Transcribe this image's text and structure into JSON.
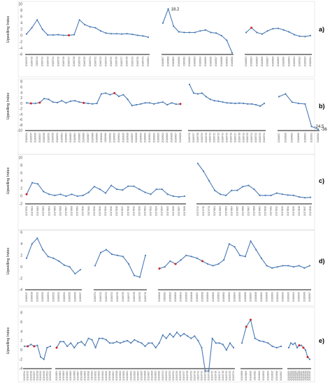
{
  "chart_data": [
    {
      "type": "line",
      "panel": "a)",
      "ylabel": "Upwelling Index",
      "y_ticks": [
        -6,
        -4,
        -2,
        0,
        2,
        4,
        6,
        8,
        10
      ],
      "ylim": [
        -6,
        10
      ],
      "grid": false,
      "annotations": [
        {
          "segment": 1,
          "index": 1,
          "text": "18.2"
        }
      ],
      "segments": [
        {
          "labels": [
            "20160709",
            "20160710",
            "20160711",
            "20160712",
            "20160713",
            "20160714",
            "20160715",
            "20160716",
            "20160717",
            "20160718",
            "20160719",
            "20160720",
            "20160721",
            "20160722",
            "20160723",
            "20160724",
            "20160725",
            "20160726",
            "20160727",
            "20160728",
            "20160729",
            "20160730",
            "20160731",
            "20160801"
          ],
          "values": [
            0.5,
            2.5,
            5,
            2,
            0.2,
            0.2,
            0.3,
            0.1,
            0.1,
            0.3,
            5,
            3.5,
            2.8,
            2.5,
            1.5,
            0.8,
            0.6,
            0.6,
            0.5,
            0.6,
            0.4,
            0.1,
            -0.1,
            -0.5
          ],
          "red_points": [
            8
          ]
        },
        {
          "labels": [
            "20160807",
            "20160808",
            "20160809",
            "20160810",
            "20160811",
            "20160812",
            "20160813",
            "20160814",
            "20160815",
            "20160816",
            "20160817",
            "20160818",
            "20160819",
            "20160820"
          ],
          "values": [
            4,
            8.5,
            3,
            1.2,
            1,
            1,
            1,
            1.5,
            1.8,
            1,
            0.8,
            0,
            -1.5,
            -5.5
          ],
          "red_points": []
        },
        {
          "labels": [
            "20160823",
            "20160824",
            "20160825",
            "20160826",
            "20160827",
            "20160828",
            "20160829",
            "20160830",
            "20160831",
            "20160901",
            "20160902",
            "20160903",
            "20160904"
          ],
          "values": [
            1,
            2.5,
            1,
            0.5,
            1.5,
            2.2,
            2.3,
            1.8,
            1.2,
            0.3,
            -0.2,
            -0.3,
            0
          ],
          "red_points": [
            1
          ]
        }
      ]
    },
    {
      "type": "line",
      "panel": "b)",
      "ylabel": "Upwelling Index",
      "y_ticks": [
        -10,
        -8,
        -6,
        -4,
        -2,
        0,
        2,
        4,
        6,
        8
      ],
      "ylim": [
        -10,
        8
      ],
      "grid": false,
      "annotations": [
        {
          "segment": 2,
          "index": 5,
          "text": "-24.5"
        },
        {
          "segment": 2,
          "index": 6,
          "text": "-36"
        }
      ],
      "segments": [
        {
          "labels": [
            "20160524",
            "20160525",
            "20160526",
            "20160527",
            "20160528",
            "20160529",
            "20160530",
            "20160531",
            "20160601",
            "20160602",
            "20160603",
            "20160604",
            "20160605",
            "20160606",
            "20160607",
            "20160608",
            "20160609",
            "20160610",
            "20160611",
            "20160612",
            "20160613",
            "20160614",
            "20160615",
            "20160616",
            "20160617",
            "20160618",
            "20160619",
            "20160620",
            "20160621",
            "20160622",
            "20160623",
            "20160624",
            "20160625",
            "20160626",
            "20160627",
            "20160628"
          ],
          "values": [
            0.2,
            0,
            0,
            0.3,
            1.8,
            1.5,
            0.5,
            0.3,
            1,
            0.2,
            0.8,
            1,
            0.5,
            0.2,
            0,
            -0.2,
            0,
            3.5,
            3.8,
            3.2,
            3.8,
            2.6,
            3.2,
            1.5,
            -0.8,
            -0.5,
            -0.2,
            0.2,
            0.2,
            -0.2,
            0.2,
            0.5,
            -0.5,
            0.2,
            -0.3,
            -0.2
          ],
          "red_points": [
            1,
            3,
            13,
            20,
            35
          ]
        },
        {
          "labels": [
            "20160706",
            "20160707",
            "20160708",
            "20160709",
            "20160710",
            "20160711",
            "20160712",
            "20160713",
            "20160714",
            "20160715",
            "20160716",
            "20160717",
            "20160718",
            "20160719",
            "20160720",
            "20160721",
            "20160722",
            "20160723",
            "20160724"
          ],
          "values": [
            7,
            3.8,
            3.5,
            3.8,
            2.5,
            1.5,
            1,
            0.8,
            0.5,
            0.2,
            0.1,
            0,
            0.1,
            0,
            -0.2,
            -0.2,
            -0.5,
            -1,
            0
          ],
          "red_points": []
        },
        {
          "labels": [
            "20160827",
            "20160828",
            "20160829",
            "20160830",
            "20160831",
            "20160901",
            "20160902"
          ],
          "values": [
            2.5,
            3.5,
            0.5,
            0,
            -0.2,
            -8.5,
            -9.5
          ],
          "red_points": []
        }
      ]
    },
    {
      "type": "line",
      "panel": "c)",
      "ylabel": "Upwelling Index",
      "y_ticks": [
        -2,
        0,
        2,
        4,
        6,
        8,
        10
      ],
      "ylim": [
        -2,
        10
      ],
      "grid": false,
      "annotations": [],
      "segments": [
        {
          "labels": [
            "20170531",
            "20170601",
            "20170602",
            "20170603",
            "20170604",
            "20170605",
            "20170606",
            "20170607",
            "20170608",
            "20170609",
            "20170610",
            "20170611",
            "20170612",
            "20170613",
            "20170614",
            "20170615",
            "20170616",
            "20170617",
            "20170618",
            "20170619",
            "20170620",
            "20170621",
            "20170622",
            "20170623",
            "20170624",
            "20170625",
            "20170626",
            "20170627",
            "20170628"
          ],
          "values": [
            0.5,
            3.5,
            3.2,
            1.2,
            0.5,
            0.2,
            0.5,
            0,
            0.5,
            0,
            0.2,
            1,
            2.5,
            1.8,
            0.8,
            2.8,
            1.8,
            1.6,
            2.6,
            2.6,
            1.8,
            1,
            0.5,
            1.8,
            1.8,
            0.5,
            0,
            -0.2,
            0
          ],
          "red_points": [
            0
          ]
        },
        {
          "labels": [
            "20170729",
            "20170730",
            "20170731",
            "20170801",
            "20170802",
            "20170803",
            "20170804",
            "20170805",
            "20170806",
            "20170807",
            "20170808",
            "20170809",
            "20170810",
            "20170811",
            "20170812",
            "20170813",
            "20170814",
            "20170815",
            "20170816",
            "20170817",
            "20170818"
          ],
          "values": [
            8.5,
            6.5,
            4,
            1.5,
            0.5,
            0.2,
            1.5,
            1.5,
            2.5,
            2.8,
            1.8,
            0.2,
            0.2,
            0.2,
            0.8,
            0.5,
            0.3,
            0.2,
            -0.2,
            -0.4,
            -0.3
          ],
          "red_points": []
        }
      ]
    },
    {
      "type": "line",
      "panel": "d)",
      "ylabel": "Upwelling Index",
      "y_ticks": [
        -4,
        -2,
        0,
        2,
        4,
        6
      ],
      "ylim": [
        -4,
        6
      ],
      "grid": false,
      "annotations": [],
      "segments": [
        {
          "labels": [
            "20180517",
            "20180518",
            "20180519",
            "20180520",
            "20180521",
            "20180522",
            "20180523",
            "20180524",
            "20180525",
            "20180526",
            "20180527"
          ],
          "values": [
            1.5,
            4,
            5,
            3,
            1.8,
            1.5,
            1,
            0.3,
            0,
            -1.2,
            -0.5
          ],
          "red_points": []
        },
        {
          "labels": [
            "20180701",
            "20180702",
            "20180703",
            "20180704",
            "20180705",
            "20180706",
            "20180707",
            "20180708",
            "20180709",
            "20180710"
          ],
          "values": [
            0.2,
            2.5,
            3,
            2.2,
            2,
            1.8,
            0.5,
            -1.5,
            -1.8,
            2
          ],
          "red_points": []
        },
        {
          "labels": [
            "20180810",
            "20180811",
            "20180812",
            "20180813",
            "20180814",
            "20180815",
            "20180816",
            "20180817",
            "20180818",
            "20180819",
            "20180820",
            "20180821",
            "20180822",
            "20180823",
            "20180824",
            "20180825",
            "20180826",
            "20180827",
            "20180828",
            "20180829",
            "20180830",
            "20180831",
            "20180901",
            "20180902",
            "20180903",
            "20180904",
            "20180905",
            "20180906",
            "20180907"
          ],
          "values": [
            -0.3,
            0,
            1,
            0.5,
            1.2,
            2,
            1.8,
            1.5,
            1,
            0.5,
            0.2,
            0.5,
            1.2,
            4,
            3.5,
            2,
            1.8,
            4.5,
            3,
            1.5,
            0.2,
            -0.2,
            0,
            0.2,
            0.2,
            0,
            0.2,
            -0.2,
            0.2
          ],
          "red_points": [
            0,
            3,
            8
          ]
        }
      ]
    },
    {
      "type": "line",
      "panel": "e)",
      "ylabel": "Upwelling Index",
      "y_ticks": [
        -4,
        -2,
        0,
        2,
        4,
        6,
        8
      ],
      "ylim": [
        -4,
        8
      ],
      "grid": false,
      "annotations": [],
      "segments": [
        {
          "labels": [
            "20190514",
            "20190515",
            "20190516",
            "20190517",
            "20190518",
            "20190519",
            "20190520",
            "20190521",
            "20190522"
          ],
          "values": [
            0.8,
            0.8,
            1.2,
            0.8,
            1,
            -1.5,
            -2,
            0.5,
            0.8
          ],
          "red_points": [
            1,
            3
          ]
        },
        {
          "labels": [
            "20190601",
            "20190602",
            "20190603",
            "20190604",
            "20190605",
            "20190606",
            "20190607",
            "20190608",
            "20190609",
            "20190610",
            "20190611",
            "20190612",
            "20190613",
            "20190614",
            "20190615",
            "20190616",
            "20190617",
            "20190618",
            "20190619",
            "20190620",
            "20190621",
            "20190622",
            "20190623",
            "20190624",
            "20190625",
            "20190626",
            "20190627",
            "20190628",
            "20190629",
            "20190630",
            "20190701",
            "20190702",
            "20190703",
            "20190704",
            "20190705",
            "20190706",
            "20190707",
            "20190708",
            "20190709",
            "20190710",
            "20190711",
            "20190712",
            "20190713",
            "20190714",
            "20190715",
            "20190716",
            "20190717",
            "20190718",
            "20190719",
            "20190720",
            "20190721"
          ],
          "values": [
            0.5,
            1.8,
            1.8,
            0.8,
            1.5,
            0.5,
            1.5,
            1.8,
            1,
            2.5,
            2.2,
            0.5,
            2.5,
            2.5,
            2.2,
            1.5,
            1.5,
            1.8,
            1.5,
            1.8,
            2,
            1.5,
            2.2,
            1.8,
            1.5,
            0.8,
            1.5,
            1.5,
            0.5,
            1.5,
            3.2,
            2.5,
            3.5,
            2.8,
            3.8,
            3,
            3.5,
            3,
            2.5,
            3,
            2,
            0.5,
            -4.5,
            -4.5,
            2.5,
            1.5,
            1.5,
            1.2,
            0,
            1.5,
            0.5
          ],
          "red_points": [
            0
          ]
        },
        {
          "labels": [
            "20190808",
            "20190809",
            "20190810",
            "20190811",
            "20190812",
            "20190813",
            "20190814",
            "20190815",
            "20190816",
            "20190817"
          ],
          "values": [
            1.5,
            5,
            6.5,
            2.5,
            2,
            1.8,
            1.5,
            0.8,
            0.5,
            0.8
          ],
          "red_points": [
            1,
            2
          ]
        },
        {
          "labels": [
            "20190903",
            "20190904",
            "20190905",
            "20190906",
            "20190907",
            "20190908",
            "20190909",
            "20190910",
            "20190911",
            "20190912",
            "20190913"
          ],
          "values": [
            0.5,
            1.5,
            1.2,
            1.5,
            0.5,
            1,
            1,
            0.5,
            0,
            -1.5,
            -2
          ],
          "red_points": [
            5,
            7,
            9
          ]
        }
      ]
    }
  ]
}
